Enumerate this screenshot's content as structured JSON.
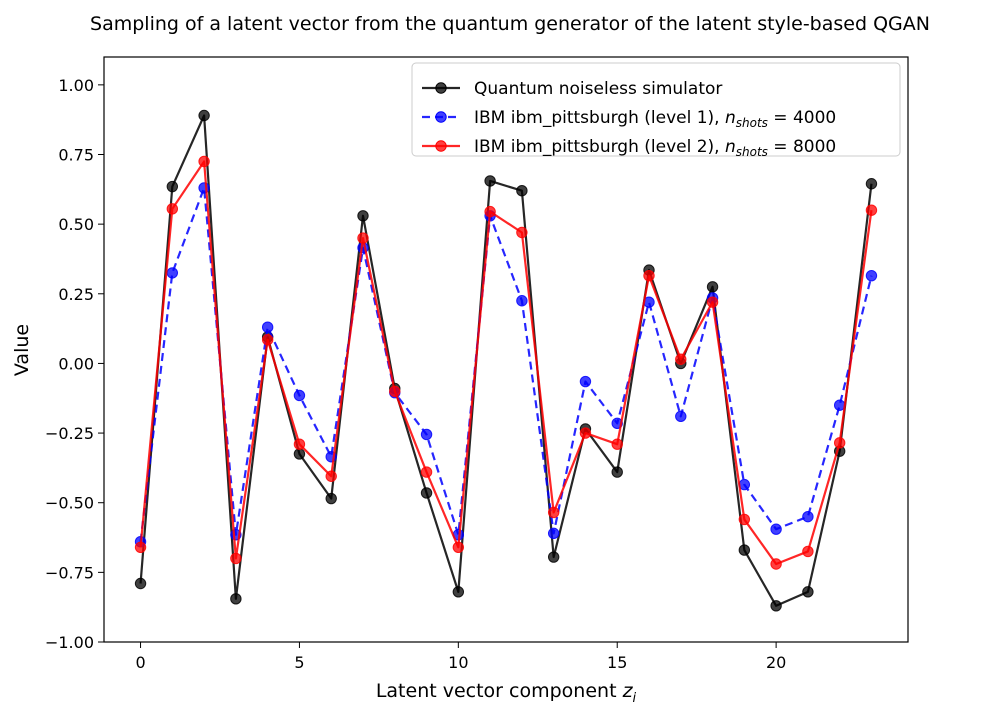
{
  "chart_data": {
    "type": "line",
    "title": "Sampling of a latent vector from the quantum generator of the latent style-based QGAN",
    "xlabel_main": "Latent vector component ",
    "xlabel_var": "z",
    "xlabel_sub": "i",
    "ylabel": "Value",
    "xlim": [
      -1.15,
      24.15
    ],
    "ylim": [
      -1.0,
      1.1
    ],
    "xticks": [
      0,
      5,
      10,
      15,
      20
    ],
    "xtick_labels": [
      "0",
      "5",
      "10",
      "15",
      "20"
    ],
    "yticks": [
      -1.0,
      -0.75,
      -0.5,
      -0.25,
      0.0,
      0.25,
      0.5,
      0.75,
      1.0
    ],
    "ytick_labels": [
      "−1.00",
      "−0.75",
      "−0.50",
      "−0.25",
      "0.00",
      "0.25",
      "0.50",
      "0.75",
      "1.00"
    ],
    "grid": false,
    "legend_position": "top-right",
    "x": [
      0,
      1,
      2,
      3,
      4,
      5,
      6,
      7,
      8,
      9,
      10,
      11,
      12,
      13,
      14,
      15,
      16,
      17,
      18,
      19,
      20,
      21,
      22,
      23
    ],
    "series": [
      {
        "legend_prefix": "Quantum noiseless simulator",
        "legend_var": "",
        "legend_sub": "",
        "legend_suffix": "",
        "color": "#000000",
        "dash": false,
        "values": [
          -0.79,
          0.635,
          0.89,
          -0.845,
          0.095,
          -0.325,
          -0.485,
          0.53,
          -0.09,
          -0.465,
          -0.82,
          0.655,
          0.62,
          -0.695,
          -0.235,
          -0.39,
          0.335,
          0.0,
          0.275,
          -0.67,
          -0.87,
          -0.82,
          -0.315,
          0.645
        ]
      },
      {
        "legend_prefix": "IBM ibm_pittsburgh (level 1), ",
        "legend_var": "n",
        "legend_sub": "shots",
        "legend_suffix": " = 4000",
        "color": "#0000ff",
        "dash": true,
        "values": [
          -0.64,
          0.325,
          0.63,
          -0.615,
          0.13,
          -0.115,
          -0.335,
          0.415,
          -0.105,
          -0.255,
          -0.615,
          0.53,
          0.225,
          -0.61,
          -0.065,
          -0.215,
          0.22,
          -0.19,
          0.235,
          -0.435,
          -0.595,
          -0.55,
          -0.15,
          0.315
        ]
      },
      {
        "legend_prefix": "IBM ibm_pittsburgh (level 2), ",
        "legend_var": "n",
        "legend_sub": "shots",
        "legend_suffix": " = 8000",
        "color": "#ff0000",
        "dash": false,
        "values": [
          -0.66,
          0.555,
          0.725,
          -0.7,
          0.085,
          -0.29,
          -0.405,
          0.45,
          -0.1,
          -0.39,
          -0.66,
          0.545,
          0.47,
          -0.535,
          -0.25,
          -0.29,
          0.315,
          0.015,
          0.22,
          -0.56,
          -0.72,
          -0.675,
          -0.285,
          0.55
        ]
      }
    ]
  }
}
